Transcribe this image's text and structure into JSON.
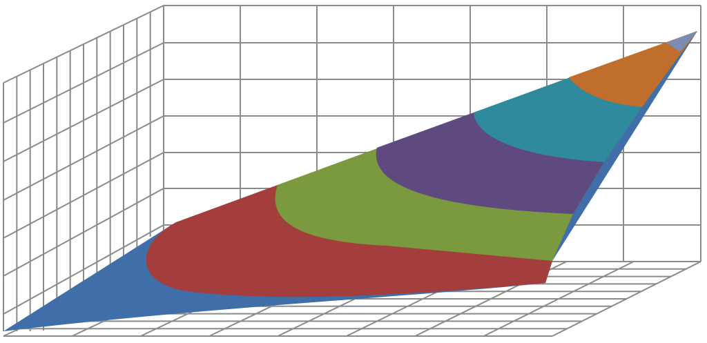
{
  "chart_data": {
    "type": "surface",
    "grid": true,
    "band_colors": [
      "#3f6ea8",
      "#a33e3c",
      "#7b9a3f",
      "#5e4a7f",
      "#2f8a9d",
      "#bf6e2c",
      "#7a8cb2"
    ]
  }
}
